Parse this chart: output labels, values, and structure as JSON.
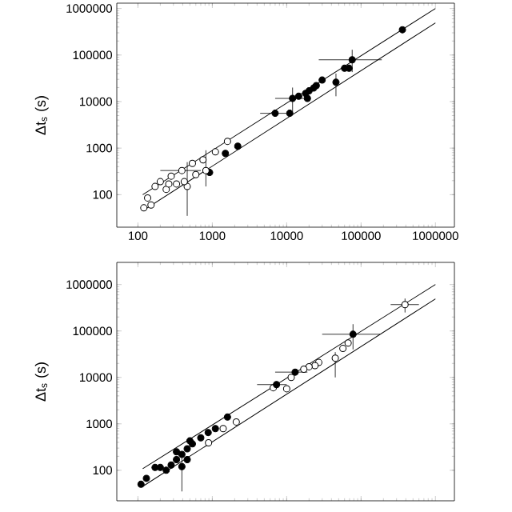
{
  "chart_data": [
    {
      "type": "scatter",
      "ylabel": "Δt$_{s}$ (s)",
      "log": "xy",
      "marker": "circle",
      "xlim": [
        52,
        1800000
      ],
      "ylim": [
        20,
        1300000
      ],
      "xticks": [
        100,
        1000,
        10000,
        100000,
        1000000
      ],
      "yticks": [
        100,
        1000,
        10000,
        100000,
        1000000
      ],
      "series": [
        {
          "color": "#000000",
          "x": [
            360000,
            76000,
            60000,
            69000,
            46000,
            30000,
            12000,
            14500,
            18000,
            20000,
            23000,
            19000,
            25000,
            7000,
            11000,
            2200,
            1500,
            920
          ],
          "values": [
            350000,
            79000,
            52000,
            52000,
            26000,
            29000,
            11700,
            13000,
            15000,
            17000,
            19500,
            11700,
            22000,
            5600,
            5600,
            1100,
            770,
            300
          ],
          "errors": [
            null,
            [
              43000,
              130000
            ],
            null,
            null,
            [
              13000,
              40000
            ],
            null,
            [
              6000,
              20000
            ],
            null,
            null,
            null,
            null,
            null,
            null,
            null,
            null,
            null,
            null,
            null
          ],
          "xerrors": [
            null,
            [
              27000,
              190000
            ],
            null,
            null,
            null,
            null,
            [
              7000,
              20000
            ],
            null,
            null,
            null,
            null,
            null,
            null,
            [
              4400,
              10000
            ],
            null,
            null,
            null,
            null
          ]
        },
        {
          "color": "#ffffff",
          "x": [
            1600,
            1100,
            750,
            540,
            390,
            280,
            200,
            170,
            135,
            120,
            240,
            460,
            420,
            330,
            600,
            820,
            260,
            150
          ],
          "values": [
            1400,
            830,
            560,
            470,
            330,
            250,
            190,
            150,
            85,
            52,
            130,
            150,
            190,
            170,
            270,
            330,
            170,
            60
          ],
          "errors": [
            null,
            null,
            null,
            null,
            null,
            null,
            null,
            null,
            null,
            null,
            null,
            [
              35,
              500
            ],
            null,
            null,
            null,
            [
              150,
              900
            ],
            null,
            null
          ],
          "xerrors": [
            null,
            null,
            null,
            null,
            [
              200,
              700
            ],
            null,
            null,
            null,
            null,
            null,
            null,
            null,
            null,
            null,
            null,
            null,
            null,
            null
          ]
        },
        {
          "type": "line",
          "marker": "none",
          "color": "#000000",
          "x": [
            116,
            1000000
          ],
          "values": [
            100,
            1000000
          ]
        },
        {
          "type": "line",
          "marker": "none",
          "color": "#000000",
          "x": [
            116,
            1000000
          ],
          "values": [
            45,
            490000
          ]
        }
      ]
    },
    {
      "type": "scatter",
      "ylabel": "Δt$_{s}$ (s)",
      "log": "xy",
      "marker": "circle",
      "tick_labels": "y",
      "xlim": [
        52,
        1800000
      ],
      "ylim": [
        22,
        3000000
      ],
      "xticks": [
        100,
        1000,
        10000,
        100000,
        1000000
      ],
      "yticks": [
        100,
        1000,
        10000,
        100000,
        1000000
      ],
      "series": [
        {
          "color": "#ffffff",
          "x": [
            390000,
            67000,
            57000,
            45000,
            27000,
            24000,
            20000,
            17000,
            11500,
            10000,
            6600,
            2100,
            1400,
            890
          ],
          "values": [
            370000,
            55000,
            42000,
            26000,
            21000,
            18000,
            17000,
            15000,
            10000,
            5700,
            6000,
            1100,
            790,
            390
          ],
          "errors": [
            [
              250000,
              500000
            ],
            null,
            null,
            [
              10000,
              35000
            ],
            null,
            null,
            null,
            null,
            null,
            null,
            null,
            null,
            null,
            null
          ],
          "xerrors": [
            [
              250000,
              600000
            ],
            null,
            null,
            null,
            null,
            null,
            null,
            null,
            null,
            null,
            null,
            null,
            null,
            null
          ]
        },
        {
          "color": "#000000",
          "x": [
            78000,
            7300,
            13000,
            1600,
            1100,
            880,
            700,
            540,
            460,
            390,
            330,
            280,
            240,
            170,
            130,
            110,
            460,
            390,
            200,
            330,
            500
          ],
          "values": [
            85000,
            7000,
            13000,
            1400,
            790,
            650,
            500,
            370,
            290,
            220,
            170,
            130,
            100,
            115,
            67,
            50,
            170,
            120,
            115,
            250,
            430
          ],
          "errors": [
            [
              40000,
              140000
            ],
            null,
            null,
            null,
            null,
            null,
            null,
            null,
            null,
            null,
            null,
            null,
            null,
            null,
            null,
            null,
            null,
            [
              35,
              250
            ],
            null,
            null,
            null
          ],
          "xerrors": [
            [
              30000,
              180000
            ],
            [
              4000,
              10000
            ],
            [
              7000,
              19000
            ],
            null,
            null,
            null,
            null,
            null,
            null,
            null,
            null,
            null,
            null,
            null,
            null,
            null,
            null,
            null,
            null,
            null,
            null
          ]
        },
        {
          "type": "line",
          "marker": "none",
          "color": "#000000",
          "x": [
            116,
            1000000
          ],
          "values": [
            108,
            1000000
          ]
        },
        {
          "type": "line",
          "marker": "none",
          "color": "#000000",
          "x": [
            116,
            1000000
          ],
          "values": [
            45,
            490000
          ]
        }
      ]
    }
  ]
}
